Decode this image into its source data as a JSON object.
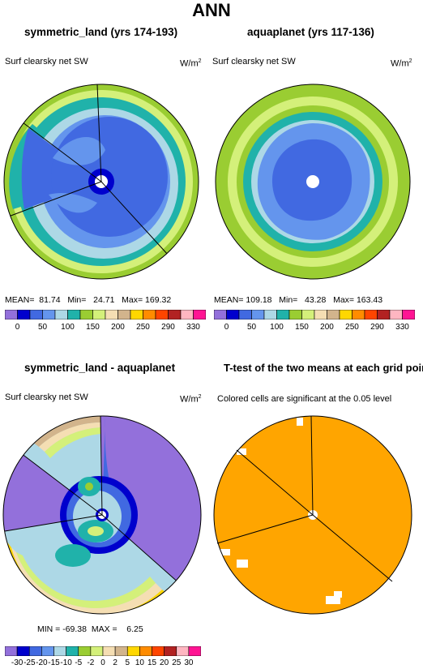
{
  "page": {
    "title": "ANN"
  },
  "panels": {
    "p1": {
      "title": "symmetric_land (yrs 174-193)",
      "var": "Surf clearsky net SW",
      "units": "W/m",
      "units_sup": "2",
      "stats": "MEAN=  81.74   Min=   24.71   Max= 169.32"
    },
    "p2": {
      "title": "aquaplanet (yrs 117-136)",
      "var": "Surf clearsky net SW",
      "units": "W/m",
      "units_sup": "2",
      "stats": "MEAN= 109.18   Min=   43.28   Max= 163.43"
    },
    "p3": {
      "title": "symmetric_land - aquaplanet",
      "var": "Surf clearsky net SW",
      "units": "W/m",
      "units_sup": "2",
      "stats": "MIN = -69.38  MAX =    6.25"
    },
    "p4": {
      "title": "T-test of the two means at each grid point",
      "var": "Colored cells are significant at the 0.05 level"
    }
  },
  "colorbars": {
    "abs": {
      "colors": [
        "#9370db",
        "#0000cd",
        "#4169e1",
        "#6495ed",
        "#add8e6",
        "#20b2aa",
        "#9acd32",
        "#d4f07a",
        "#f5deb3",
        "#d2b48c",
        "#ffd700",
        "#ff8c00",
        "#ff4500",
        "#b22222",
        "#ffb6c1",
        "#ff1493"
      ],
      "labels": [
        "0",
        "50",
        "100",
        "150",
        "200",
        "250",
        "290",
        "330"
      ]
    },
    "diff": {
      "colors": [
        "#9370db",
        "#0000cd",
        "#4169e1",
        "#6495ed",
        "#add8e6",
        "#20b2aa",
        "#9acd32",
        "#d4f07a",
        "#f5deb3",
        "#d2b48c",
        "#ffd700",
        "#ff8c00",
        "#ff4500",
        "#b22222",
        "#ffb6c1",
        "#ff1493"
      ],
      "labels": [
        "-30",
        "-25",
        "-20",
        "-15",
        "-10",
        "-5",
        "-2",
        "0",
        "2",
        "5",
        "10",
        "15",
        "20",
        "25",
        "30"
      ]
    }
  },
  "chart_data": [
    {
      "type": "heatmap",
      "title": "symmetric_land (yrs 174-193)",
      "variable": "Surf clearsky net SW",
      "units": "W/m2",
      "mean": 81.74,
      "min": 24.71,
      "max": 169.32,
      "contour_levels": [
        0,
        10,
        20,
        30,
        40,
        50,
        60,
        70,
        80,
        90,
        100,
        110,
        120,
        130,
        140,
        150,
        160,
        170,
        180,
        190,
        200,
        210,
        220,
        230,
        240,
        250,
        260,
        270,
        280,
        290,
        300,
        310,
        320,
        330
      ],
      "colorbar_labels": [
        0,
        50,
        100,
        150,
        200,
        250,
        290,
        330
      ]
    },
    {
      "type": "heatmap",
      "title": "aquaplanet (yrs 117-136)",
      "variable": "Surf clearsky net SW",
      "units": "W/m2",
      "mean": 109.18,
      "min": 43.28,
      "max": 163.43,
      "colorbar_labels": [
        0,
        50,
        100,
        150,
        200,
        250,
        290,
        330
      ]
    },
    {
      "type": "heatmap",
      "title": "symmetric_land - aquaplanet",
      "variable": "Surf clearsky net SW",
      "units": "W/m2",
      "min": -69.38,
      "max": 6.25,
      "colorbar_labels": [
        -30,
        -25,
        -20,
        -15,
        -10,
        -5,
        -2,
        0,
        2,
        5,
        10,
        15,
        20,
        25,
        30
      ]
    },
    {
      "type": "heatmap",
      "title": "T-test of the two means at each grid point",
      "annotation": "Colored cells are significant at the 0.05 level",
      "significance_level": 0.05
    }
  ]
}
